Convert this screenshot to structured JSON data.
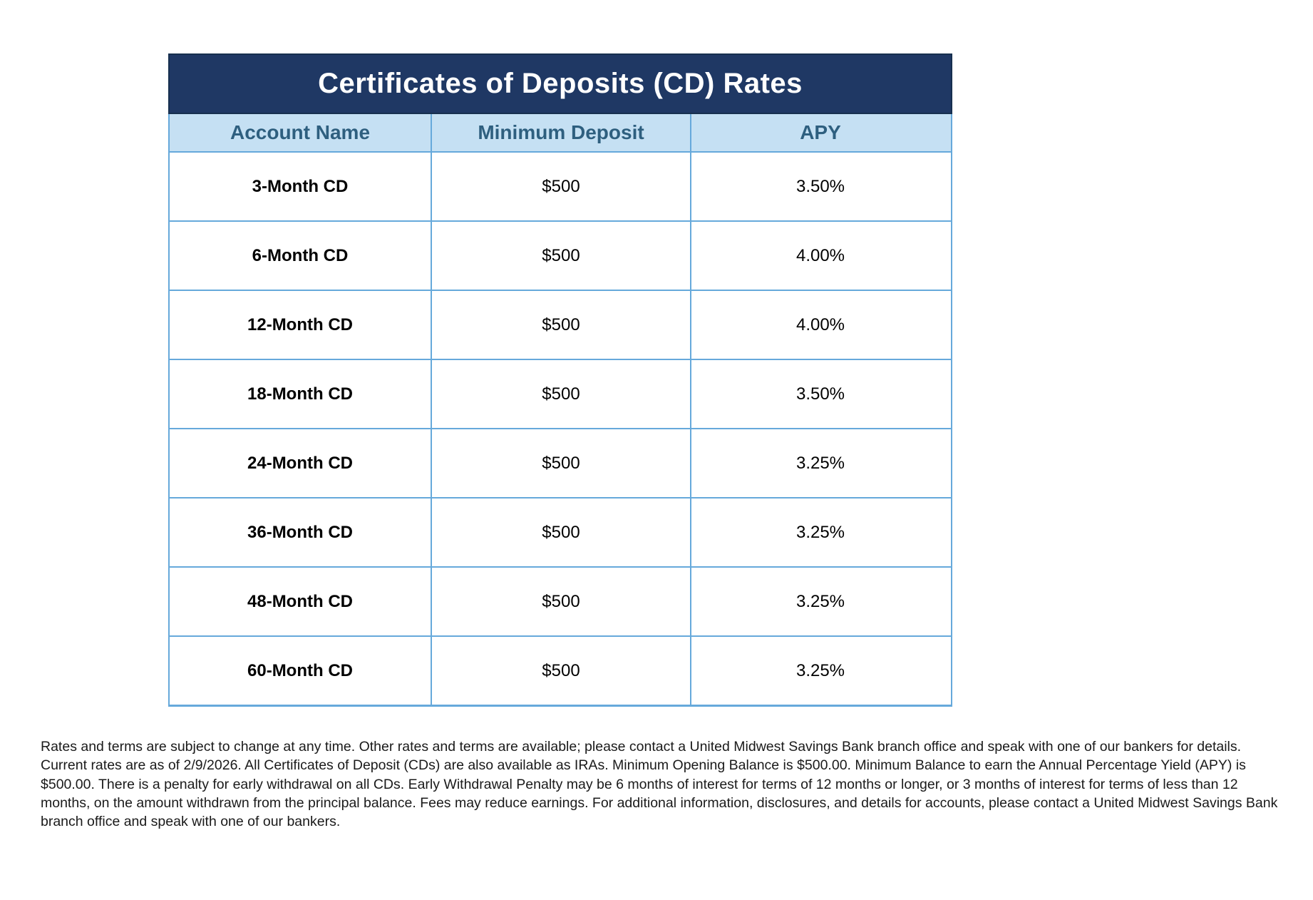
{
  "table": {
    "title": "Certificates of Deposits (CD) Rates",
    "columns": [
      "Account Name",
      "Minimum Deposit",
      "APY"
    ],
    "rows": [
      {
        "account": "3-Month CD",
        "minimum_deposit": "$500",
        "apy": "3.50%"
      },
      {
        "account": "6-Month CD",
        "minimum_deposit": "$500",
        "apy": "4.00%"
      },
      {
        "account": "12-Month CD",
        "minimum_deposit": "$500",
        "apy": "4.00%"
      },
      {
        "account": "18-Month CD",
        "minimum_deposit": "$500",
        "apy": "3.50%"
      },
      {
        "account": "24-Month CD",
        "minimum_deposit": "$500",
        "apy": "3.25%"
      },
      {
        "account": "36-Month CD",
        "minimum_deposit": "$500",
        "apy": "3.25%"
      },
      {
        "account": "48-Month CD",
        "minimum_deposit": "$500",
        "apy": "3.25%"
      },
      {
        "account": "60-Month CD",
        "minimum_deposit": "$500",
        "apy": "3.25%"
      }
    ]
  },
  "disclaimer": "Rates and terms are subject to change at any time. Other rates and terms are available; please contact a United Midwest Savings Bank branch office and speak with one of our bankers for details. Current rates are as of 2/9/2026. All Certificates of Deposit (CDs) are also available as IRAs. Minimum Opening Balance is $500.00. Minimum Balance to earn the Annual Percentage Yield (APY) is $500.00. There is a penalty for early withdrawal on all CDs. Early Withdrawal Penalty may be 6 months of interest for terms of 12 months or longer, or 3 months of interest for terms of less than 12 months, on the amount withdrawn from the principal balance. Fees may reduce earnings. For additional information, disclosures, and details for accounts, please contact a United Midwest Savings Bank branch office and speak with one of our bankers.",
  "colors": {
    "title_bar_bg": "#1F3864",
    "title_text": "#FFFFFF",
    "header_bg": "#C5E0F3",
    "header_text": "#2E5F7F",
    "grid_border": "#66A9DB",
    "title_bar_border": "#17304F",
    "cell_text": "#000000",
    "disclaimer_text": "#1A1A1A"
  }
}
